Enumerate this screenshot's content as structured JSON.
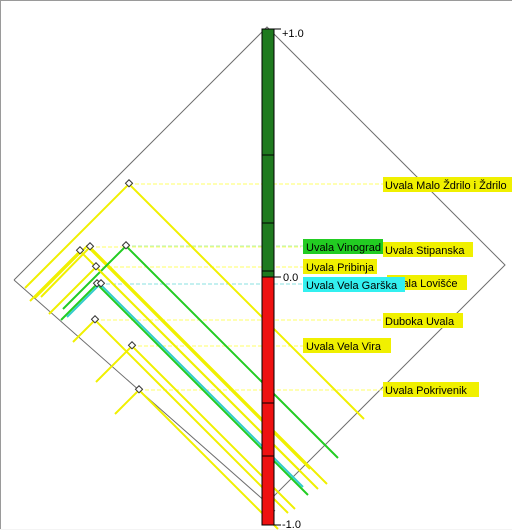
{
  "scale": {
    "top": "+1.0",
    "middle": "0.0",
    "bottom": "-1.0"
  },
  "colors": {
    "positive_bar": "#1f7a1f",
    "negative_bar": "#ee1111",
    "yellow": "#f0f000",
    "green": "#22cc22",
    "cyan": "#33cccc",
    "cyan_label": "#33f0f0",
    "frame": "#6e6e6e"
  },
  "labels": [
    {
      "id": "malo-zdrilo",
      "text": "Uvala Malo Ždrilo i Ždrilo",
      "color": "yellow"
    },
    {
      "id": "vinograd",
      "text": "Uvala Vinograd",
      "color": "green"
    },
    {
      "id": "stipanska",
      "text": "Uvala Stipanska",
      "color": "yellow"
    },
    {
      "id": "pribinja",
      "text": "Uvala Pribinja",
      "color": "yellow"
    },
    {
      "id": "losisce",
      "text": "Uvala Lovišće",
      "color": "yellow"
    },
    {
      "id": "vela-garska",
      "text": "Uvala Vela Garška",
      "color": "cyan"
    },
    {
      "id": "duboka",
      "text": "Duboka Uvala",
      "color": "yellow"
    },
    {
      "id": "vela-vira",
      "text": "Uvala Vela Vira",
      "color": "yellow"
    },
    {
      "id": "pokrivenik",
      "text": "Uvala Pokrivenik",
      "color": "yellow"
    }
  ]
}
